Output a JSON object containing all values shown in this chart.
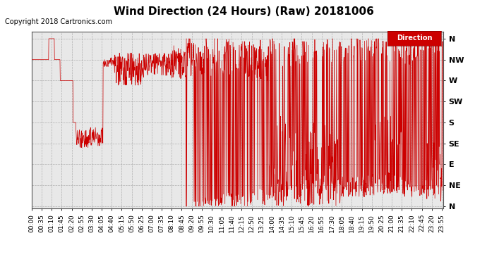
{
  "title": "Wind Direction (24 Hours) (Raw) 20181006",
  "copyright": "Copyright 2018 Cartronics.com",
  "legend_label": "Direction",
  "legend_bg": "#cc0000",
  "legend_fg": "#ffffff",
  "line_color": "#cc0000",
  "bg_color": "#ffffff",
  "plot_bg": "#e8e8e8",
  "grid_color": "#999999",
  "y_labels": [
    "N",
    "NW",
    "W",
    "SW",
    "S",
    "SE",
    "E",
    "NE",
    "N"
  ],
  "y_values": [
    360,
    315,
    270,
    225,
    180,
    135,
    90,
    45,
    0
  ],
  "ylim": [
    -5,
    375
  ],
  "x_ticks": [
    "00:00",
    "00:35",
    "01:10",
    "01:45",
    "02:20",
    "02:55",
    "03:30",
    "04:05",
    "04:40",
    "05:15",
    "05:50",
    "06:25",
    "07:00",
    "07:35",
    "08:10",
    "08:45",
    "09:20",
    "09:55",
    "10:30",
    "11:05",
    "11:40",
    "12:15",
    "12:50",
    "13:25",
    "14:00",
    "14:35",
    "15:10",
    "15:45",
    "16:20",
    "16:55",
    "17:30",
    "18:05",
    "18:40",
    "19:15",
    "19:50",
    "20:25",
    "21:00",
    "21:35",
    "22:10",
    "22:45",
    "23:20",
    "23:55"
  ],
  "title_fontsize": 11,
  "copyright_fontsize": 7,
  "tick_fontsize": 6.5,
  "y_tick_fontsize": 8,
  "legend_fontsize": 7
}
